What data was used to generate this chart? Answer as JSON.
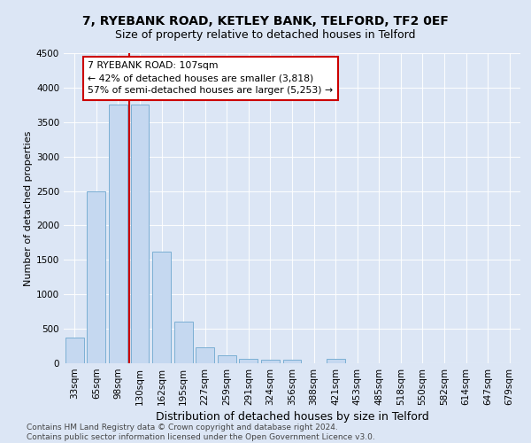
{
  "title1": "7, RYEBANK ROAD, KETLEY BANK, TELFORD, TF2 0EF",
  "title2": "Size of property relative to detached houses in Telford",
  "xlabel": "Distribution of detached houses by size in Telford",
  "ylabel": "Number of detached properties",
  "footnote": "Contains HM Land Registry data © Crown copyright and database right 2024.\nContains public sector information licensed under the Open Government Licence v3.0.",
  "categories": [
    "33sqm",
    "65sqm",
    "98sqm",
    "130sqm",
    "162sqm",
    "195sqm",
    "227sqm",
    "259sqm",
    "291sqm",
    "324sqm",
    "356sqm",
    "388sqm",
    "421sqm",
    "453sqm",
    "485sqm",
    "518sqm",
    "550sqm",
    "582sqm",
    "614sqm",
    "647sqm",
    "679sqm"
  ],
  "values": [
    375,
    2500,
    3750,
    3750,
    1625,
    600,
    237,
    112,
    62,
    50,
    50,
    0,
    62,
    0,
    0,
    0,
    0,
    0,
    0,
    0,
    0
  ],
  "bar_color": "#c5d8f0",
  "bar_edge_color": "#7bafd4",
  "vline_x": 2.5,
  "vline_color": "#cc0000",
  "annotation_text": "7 RYEBANK ROAD: 107sqm\n← 42% of detached houses are smaller (3,818)\n57% of semi-detached houses are larger (5,253) →",
  "annotation_box_color": "#ffffff",
  "annotation_box_edge_color": "#cc0000",
  "ylim": [
    0,
    4500
  ],
  "yticks": [
    0,
    500,
    1000,
    1500,
    2000,
    2500,
    3000,
    3500,
    4000,
    4500
  ],
  "bg_color": "#dce6f5",
  "plot_bg_color": "#dce6f5",
  "title1_fontsize": 10,
  "title2_fontsize": 9,
  "xlabel_fontsize": 9,
  "ylabel_fontsize": 8,
  "footnote_fontsize": 6.5,
  "tick_fontsize": 7.5
}
